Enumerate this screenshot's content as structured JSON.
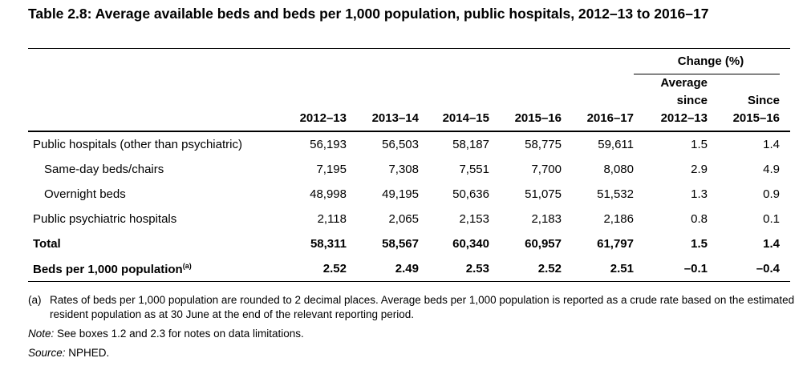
{
  "title": "Table 2.8: Average available beds and beds per 1,000 population, public hospitals, 2012–13 to 2016–17",
  "table": {
    "change_group": "Change (%)",
    "columns": [
      "2012–13",
      "2013–14",
      "2014–15",
      "2015–16",
      "2016–17"
    ],
    "avg_since": [
      "Average",
      "since",
      "2012–13"
    ],
    "since": [
      "Since",
      "2015–16"
    ],
    "rows": [
      {
        "label": "Public hospitals (other than psychiatric)",
        "values": [
          "56,193",
          "56,503",
          "58,187",
          "58,775",
          "59,611",
          "1.5",
          "1.4"
        ]
      },
      {
        "label": "Same-day beds/chairs",
        "values": [
          "7,195",
          "7,308",
          "7,551",
          "7,700",
          "8,080",
          "2.9",
          "4.9"
        ]
      },
      {
        "label": "Overnight beds",
        "values": [
          "48,998",
          "49,195",
          "50,636",
          "51,075",
          "51,532",
          "1.3",
          "0.9"
        ]
      },
      {
        "label": "Public psychiatric hospitals",
        "values": [
          "2,118",
          "2,065",
          "2,153",
          "2,183",
          "2,186",
          "0.8",
          "0.1"
        ]
      },
      {
        "label": "Total",
        "values": [
          "58,311",
          "58,567",
          "60,340",
          "60,957",
          "61,797",
          "1.5",
          "1.4"
        ]
      },
      {
        "label": "Beds per 1,000 population",
        "sup": "(a)",
        "values": [
          "2.52",
          "2.49",
          "2.53",
          "2.52",
          "2.51",
          "–0.1",
          "–0.4"
        ]
      }
    ]
  },
  "footnote": {
    "marker": "(a)",
    "text": "Rates of beds per 1,000 population are rounded to 2 decimal places. Average beds per 1,000 population is reported as a crude rate based on the estimated resident population as at 30 June at the end of the relevant reporting period."
  },
  "note": {
    "label": "Note:",
    "text": " See boxes 1.2 and 2.3 for notes on data limitations."
  },
  "source": {
    "label": "Source:",
    "text": " NPHED."
  }
}
